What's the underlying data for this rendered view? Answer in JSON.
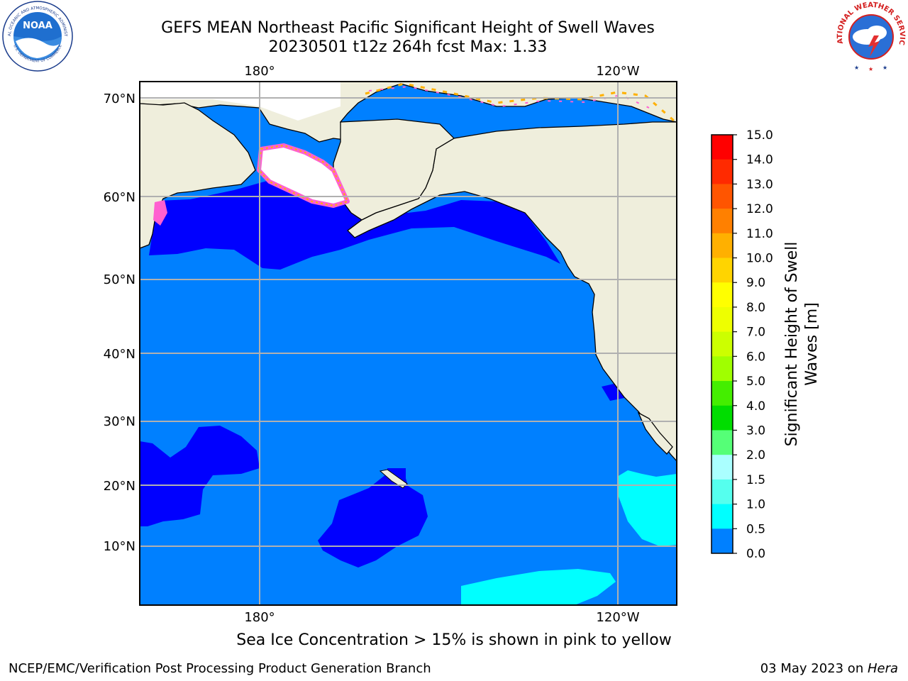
{
  "header": {
    "title_line1": "GEFS MEAN Northeast Pacific Significant Height of Swell Waves",
    "title_line2": "20230501 t12z 264h fcst   Max: 1.33"
  },
  "map": {
    "lat_labels": [
      "70°N",
      "60°N",
      "50°N",
      "40°N",
      "30°N",
      "20°N",
      "10°N"
    ],
    "lon_labels_top": [
      "180°",
      "120°W"
    ],
    "lon_labels_bottom": [
      "180°",
      "120°W"
    ],
    "colors": {
      "ocean": "#0080ff",
      "low": "#0000ff",
      "cyan": "#00ffff",
      "land": "#efeedc",
      "ice_pink": "#ff60d0",
      "ice_white": "#ffffff"
    }
  },
  "colorbar": {
    "label": "Significant Height of Swell Waves [m]",
    "ticks": [
      "15.0",
      "14.0",
      "13.0",
      "12.0",
      "11.0",
      "10.0",
      "9.0",
      "8.0",
      "7.0",
      "6.0",
      "5.0",
      "4.0",
      "3.0",
      "2.0",
      "1.5",
      "1.0",
      "0.5",
      "0.0"
    ],
    "colors": [
      "#ff0000",
      "#ff2a00",
      "#ff5500",
      "#ff8000",
      "#ffb000",
      "#ffd400",
      "#ffff00",
      "#eeff00",
      "#ccff00",
      "#a0ff00",
      "#44ee00",
      "#00dd00",
      "#55ff77",
      "#aaffff",
      "#55ffee",
      "#00ffff",
      "#0080ff",
      "#0000ff"
    ]
  },
  "caption": "Sea Ice Concentration > 15% is shown in pink to yellow",
  "footer": {
    "left": "NCEP/EMC/Verification Post Processing Product Generation Branch",
    "right_date": "03 May 2023 on ",
    "right_machine": "Hera"
  },
  "logos": {
    "noaa_text": "NOAA",
    "noaa_ring": "NATIONAL OCEANIC AND ATMOSPHERIC ADMINISTRATION",
    "noaa_ring_bottom": "U.S. DEPARTMENT OF COMMERCE",
    "nws_ring": "NATIONAL WEATHER SERVICE"
  }
}
